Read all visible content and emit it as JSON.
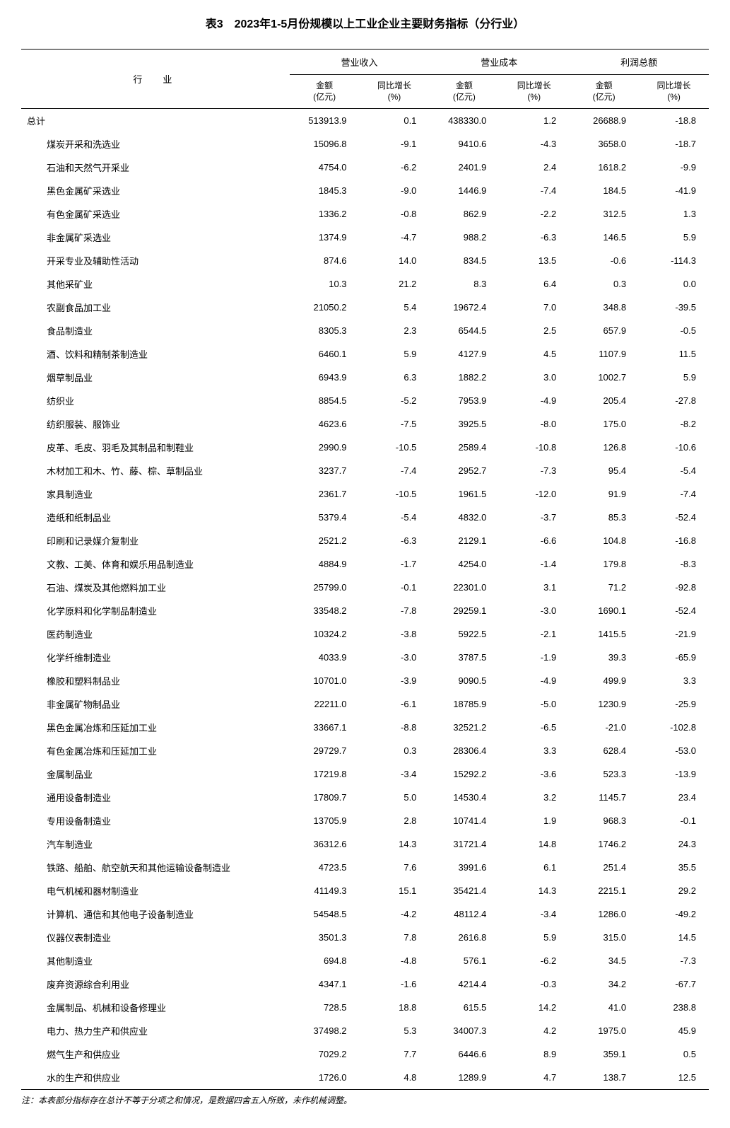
{
  "title": "表3　2023年1-5月份规模以上工业企业主要财务指标（分行业）",
  "footnote": "注：本表部分指标存在总计不等于分项之和情况，是数据四舍五入所致，未作机械调整。",
  "headers": {
    "industry": "行　业",
    "group1": "营业收入",
    "group2": "营业成本",
    "group3": "利润总额",
    "amount_label": "金额",
    "amount_unit": "(亿元)",
    "growth_label": "同比增长",
    "growth_unit": "(%)"
  },
  "rows": [
    {
      "name": "总计",
      "indent": false,
      "v": [
        "513913.9",
        "0.1",
        "438330.0",
        "1.2",
        "26688.9",
        "-18.8"
      ]
    },
    {
      "name": "煤炭开采和洗选业",
      "indent": true,
      "v": [
        "15096.8",
        "-9.1",
        "9410.6",
        "-4.3",
        "3658.0",
        "-18.7"
      ]
    },
    {
      "name": "石油和天然气开采业",
      "indent": true,
      "v": [
        "4754.0",
        "-6.2",
        "2401.9",
        "2.4",
        "1618.2",
        "-9.9"
      ]
    },
    {
      "name": "黑色金属矿采选业",
      "indent": true,
      "v": [
        "1845.3",
        "-9.0",
        "1446.9",
        "-7.4",
        "184.5",
        "-41.9"
      ]
    },
    {
      "name": "有色金属矿采选业",
      "indent": true,
      "v": [
        "1336.2",
        "-0.8",
        "862.9",
        "-2.2",
        "312.5",
        "1.3"
      ]
    },
    {
      "name": "非金属矿采选业",
      "indent": true,
      "v": [
        "1374.9",
        "-4.7",
        "988.2",
        "-6.3",
        "146.5",
        "5.9"
      ]
    },
    {
      "name": "开采专业及辅助性活动",
      "indent": true,
      "v": [
        "874.6",
        "14.0",
        "834.5",
        "13.5",
        "-0.6",
        "-114.3"
      ]
    },
    {
      "name": "其他采矿业",
      "indent": true,
      "v": [
        "10.3",
        "21.2",
        "8.3",
        "6.4",
        "0.3",
        "0.0"
      ]
    },
    {
      "name": "农副食品加工业",
      "indent": true,
      "v": [
        "21050.2",
        "5.4",
        "19672.4",
        "7.0",
        "348.8",
        "-39.5"
      ]
    },
    {
      "name": "食品制造业",
      "indent": true,
      "v": [
        "8305.3",
        "2.3",
        "6544.5",
        "2.5",
        "657.9",
        "-0.5"
      ]
    },
    {
      "name": "酒、饮料和精制茶制造业",
      "indent": true,
      "v": [
        "6460.1",
        "5.9",
        "4127.9",
        "4.5",
        "1107.9",
        "11.5"
      ]
    },
    {
      "name": "烟草制品业",
      "indent": true,
      "v": [
        "6943.9",
        "6.3",
        "1882.2",
        "3.0",
        "1002.7",
        "5.9"
      ]
    },
    {
      "name": "纺织业",
      "indent": true,
      "v": [
        "8854.5",
        "-5.2",
        "7953.9",
        "-4.9",
        "205.4",
        "-27.8"
      ]
    },
    {
      "name": "纺织服装、服饰业",
      "indent": true,
      "v": [
        "4623.6",
        "-7.5",
        "3925.5",
        "-8.0",
        "175.0",
        "-8.2"
      ]
    },
    {
      "name": "皮革、毛皮、羽毛及其制品和制鞋业",
      "indent": true,
      "v": [
        "2990.9",
        "-10.5",
        "2589.4",
        "-10.8",
        "126.8",
        "-10.6"
      ]
    },
    {
      "name": "木材加工和木、竹、藤、棕、草制品业",
      "indent": true,
      "v": [
        "3237.7",
        "-7.4",
        "2952.7",
        "-7.3",
        "95.4",
        "-5.4"
      ]
    },
    {
      "name": "家具制造业",
      "indent": true,
      "v": [
        "2361.7",
        "-10.5",
        "1961.5",
        "-12.0",
        "91.9",
        "-7.4"
      ]
    },
    {
      "name": "造纸和纸制品业",
      "indent": true,
      "v": [
        "5379.4",
        "-5.4",
        "4832.0",
        "-3.7",
        "85.3",
        "-52.4"
      ]
    },
    {
      "name": "印刷和记录媒介复制业",
      "indent": true,
      "v": [
        "2521.2",
        "-6.3",
        "2129.1",
        "-6.6",
        "104.8",
        "-16.8"
      ]
    },
    {
      "name": "文教、工美、体育和娱乐用品制造业",
      "indent": true,
      "v": [
        "4884.9",
        "-1.7",
        "4254.0",
        "-1.4",
        "179.8",
        "-8.3"
      ]
    },
    {
      "name": "石油、煤炭及其他燃料加工业",
      "indent": true,
      "v": [
        "25799.0",
        "-0.1",
        "22301.0",
        "3.1",
        "71.2",
        "-92.8"
      ]
    },
    {
      "name": "化学原料和化学制品制造业",
      "indent": true,
      "v": [
        "33548.2",
        "-7.8",
        "29259.1",
        "-3.0",
        "1690.1",
        "-52.4"
      ]
    },
    {
      "name": "医药制造业",
      "indent": true,
      "v": [
        "10324.2",
        "-3.8",
        "5922.5",
        "-2.1",
        "1415.5",
        "-21.9"
      ]
    },
    {
      "name": "化学纤维制造业",
      "indent": true,
      "v": [
        "4033.9",
        "-3.0",
        "3787.5",
        "-1.9",
        "39.3",
        "-65.9"
      ]
    },
    {
      "name": "橡胶和塑料制品业",
      "indent": true,
      "v": [
        "10701.0",
        "-3.9",
        "9090.5",
        "-4.9",
        "499.9",
        "3.3"
      ]
    },
    {
      "name": "非金属矿物制品业",
      "indent": true,
      "v": [
        "22211.0",
        "-6.1",
        "18785.9",
        "-5.0",
        "1230.9",
        "-25.9"
      ]
    },
    {
      "name": "黑色金属冶炼和压延加工业",
      "indent": true,
      "v": [
        "33667.1",
        "-8.8",
        "32521.2",
        "-6.5",
        "-21.0",
        "-102.8"
      ]
    },
    {
      "name": "有色金属冶炼和压延加工业",
      "indent": true,
      "v": [
        "29729.7",
        "0.3",
        "28306.4",
        "3.3",
        "628.4",
        "-53.0"
      ]
    },
    {
      "name": "金属制品业",
      "indent": true,
      "v": [
        "17219.8",
        "-3.4",
        "15292.2",
        "-3.6",
        "523.3",
        "-13.9"
      ]
    },
    {
      "name": "通用设备制造业",
      "indent": true,
      "v": [
        "17809.7",
        "5.0",
        "14530.4",
        "3.2",
        "1145.7",
        "23.4"
      ]
    },
    {
      "name": "专用设备制造业",
      "indent": true,
      "v": [
        "13705.9",
        "2.8",
        "10741.4",
        "1.9",
        "968.3",
        "-0.1"
      ]
    },
    {
      "name": "汽车制造业",
      "indent": true,
      "v": [
        "36312.6",
        "14.3",
        "31721.4",
        "14.8",
        "1746.2",
        "24.3"
      ]
    },
    {
      "name": "铁路、船舶、航空航天和其他运输设备制造业",
      "indent": true,
      "v": [
        "4723.5",
        "7.6",
        "3991.6",
        "6.1",
        "251.4",
        "35.5"
      ]
    },
    {
      "name": "电气机械和器材制造业",
      "indent": true,
      "v": [
        "41149.3",
        "15.1",
        "35421.4",
        "14.3",
        "2215.1",
        "29.2"
      ]
    },
    {
      "name": "计算机、通信和其他电子设备制造业",
      "indent": true,
      "v": [
        "54548.5",
        "-4.2",
        "48112.4",
        "-3.4",
        "1286.0",
        "-49.2"
      ]
    },
    {
      "name": "仪器仪表制造业",
      "indent": true,
      "v": [
        "3501.3",
        "7.8",
        "2616.8",
        "5.9",
        "315.0",
        "14.5"
      ]
    },
    {
      "name": "其他制造业",
      "indent": true,
      "v": [
        "694.8",
        "-4.8",
        "576.1",
        "-6.2",
        "34.5",
        "-7.3"
      ]
    },
    {
      "name": "废弃资源综合利用业",
      "indent": true,
      "v": [
        "4347.1",
        "-1.6",
        "4214.4",
        "-0.3",
        "34.2",
        "-67.7"
      ]
    },
    {
      "name": "金属制品、机械和设备修理业",
      "indent": true,
      "v": [
        "728.5",
        "18.8",
        "615.5",
        "14.2",
        "41.0",
        "238.8"
      ]
    },
    {
      "name": "电力、热力生产和供应业",
      "indent": true,
      "v": [
        "37498.2",
        "5.3",
        "34007.3",
        "4.2",
        "1975.0",
        "45.9"
      ]
    },
    {
      "name": "燃气生产和供应业",
      "indent": true,
      "v": [
        "7029.2",
        "7.7",
        "6446.6",
        "8.9",
        "359.1",
        "0.5"
      ]
    },
    {
      "name": "水的生产和供应业",
      "indent": true,
      "v": [
        "1726.0",
        "4.8",
        "1289.9",
        "4.7",
        "138.7",
        "12.5"
      ]
    }
  ]
}
